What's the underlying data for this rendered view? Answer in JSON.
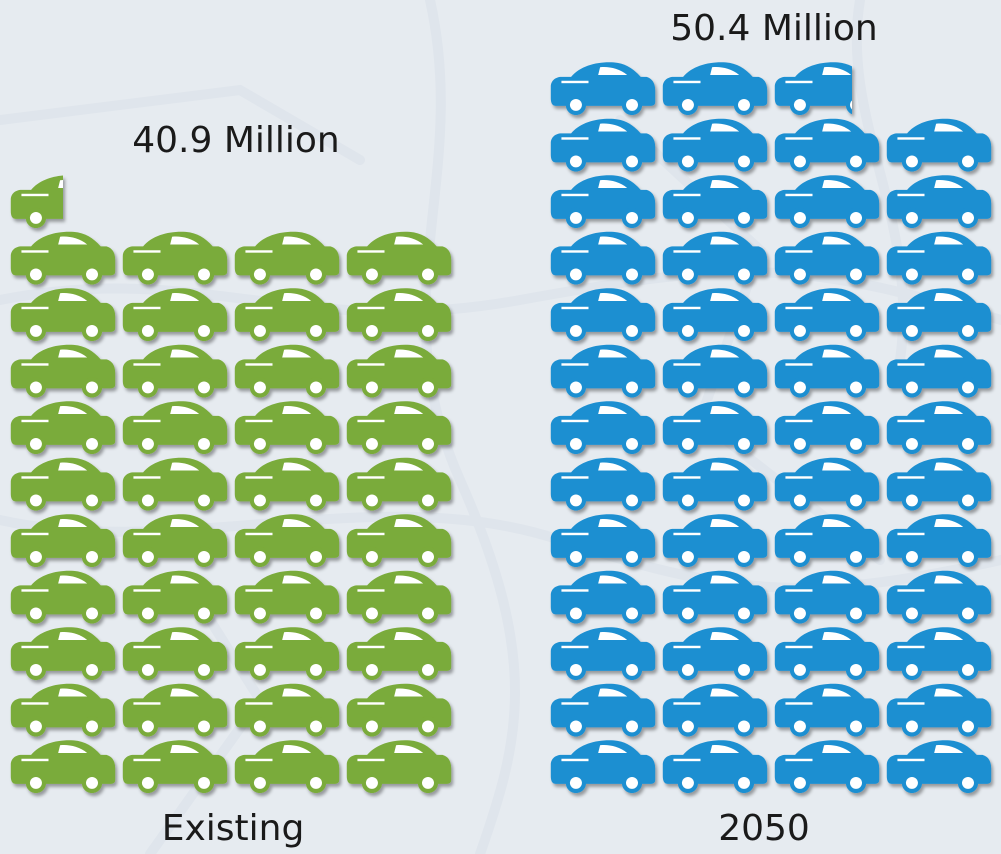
{
  "colors": {
    "background": "#e6ebf0",
    "map_lines": "#dfe5ec",
    "existing": "#7aab3a",
    "future": "#1f8fd1",
    "text": "#1a1a1a"
  },
  "chart_data": {
    "type": "pictograph",
    "unit_icon": "car-icon",
    "categories": [
      "Existing",
      "2050"
    ],
    "values": [
      40.9,
      50.4
    ],
    "value_labels": [
      "40.9 Million",
      "50.4 Million"
    ],
    "title": "",
    "xlabel": "",
    "ylabel": ""
  }
}
